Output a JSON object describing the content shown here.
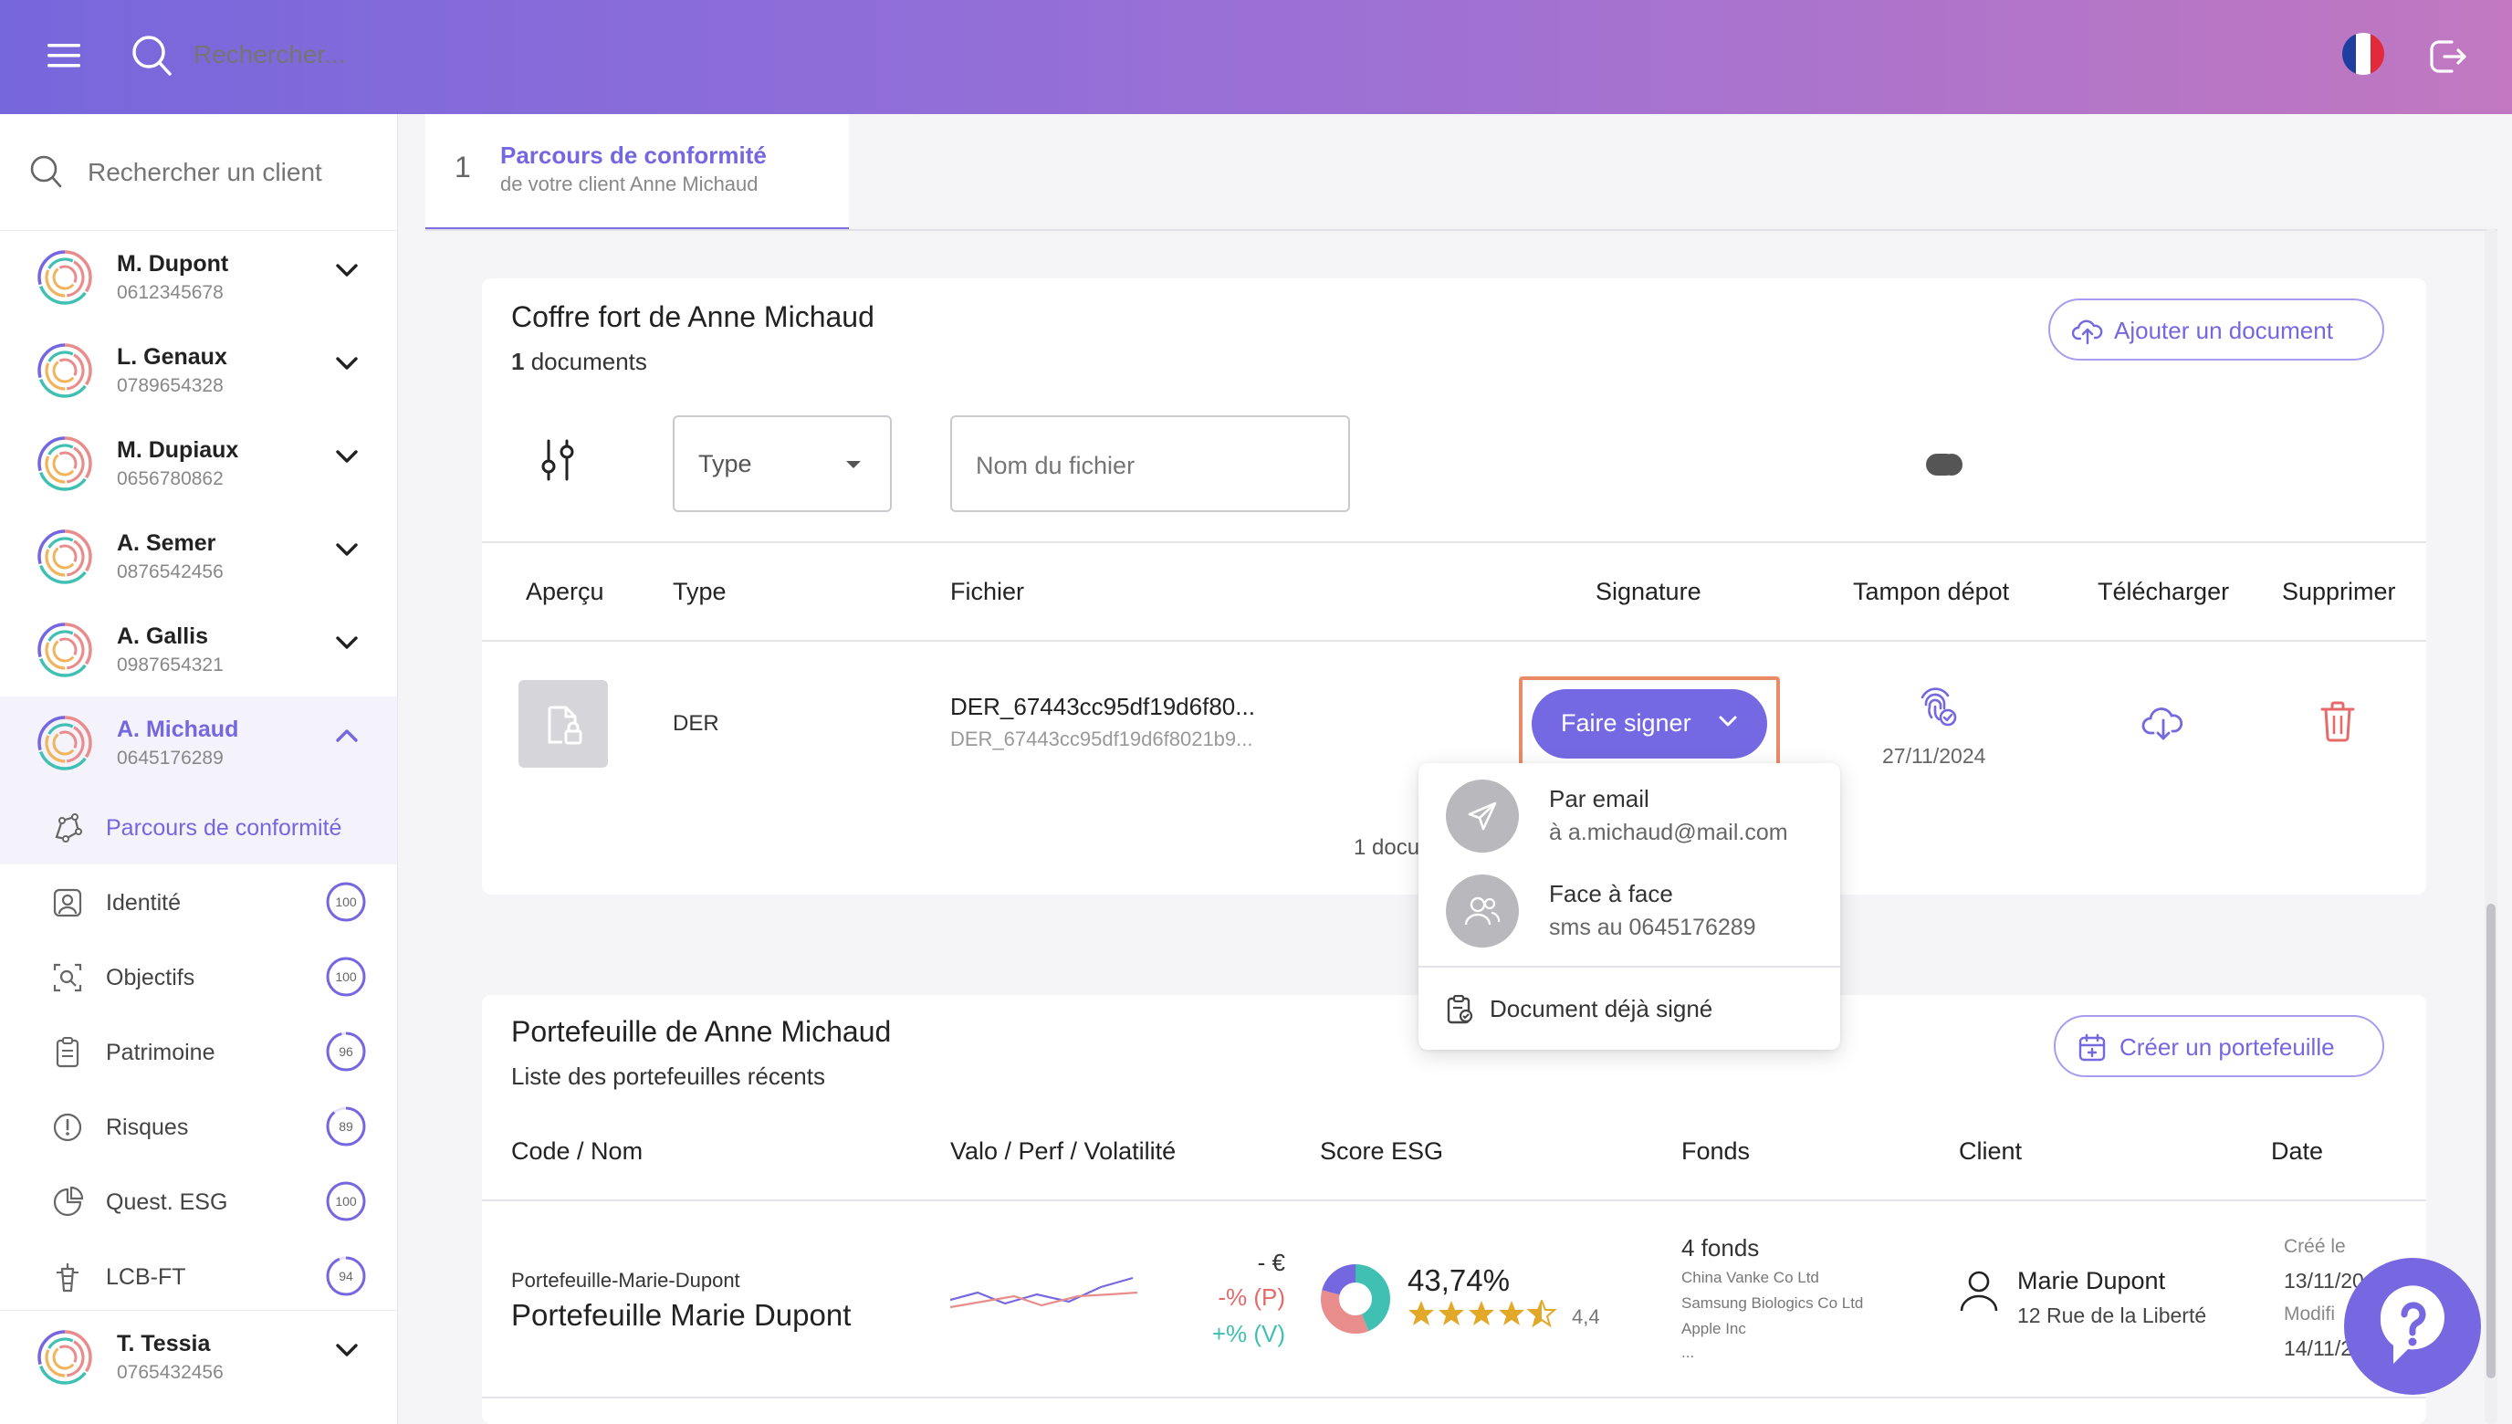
{
  "topbar": {
    "search_placeholder": "Rechercher..."
  },
  "sidebar": {
    "search_placeholder": "Rechercher un client",
    "clients": [
      {
        "name": "M. Dupont",
        "phone": "0612345678"
      },
      {
        "name": "L. Genaux",
        "phone": "0789654328"
      },
      {
        "name": "M. Dupiaux",
        "phone": "0656780862"
      },
      {
        "name": "A. Semer",
        "phone": "0876542456"
      },
      {
        "name": "A. Gallis",
        "phone": "0987654321"
      },
      {
        "name": "A. Michaud",
        "phone": "0645176289"
      }
    ],
    "sub_items": [
      {
        "label": "Parcours de conformité",
        "score": ""
      },
      {
        "label": "Identité",
        "score": "100"
      },
      {
        "label": "Objectifs",
        "score": "100"
      },
      {
        "label": "Patrimoine",
        "score": "96"
      },
      {
        "label": "Risques",
        "score": "89"
      },
      {
        "label": "Quest. ESG",
        "score": "100"
      },
      {
        "label": "LCB-FT",
        "score": "94"
      }
    ],
    "last_client": {
      "name": "T. Tessia",
      "phone": "0765432456"
    }
  },
  "stepper": {
    "number": "1",
    "title": "Parcours de conformité",
    "subtitle": "de votre client Anne Michaud"
  },
  "vault": {
    "title": "Coffre fort de Anne Michaud",
    "count_num": "1",
    "count_label": " documents",
    "add_button": "Ajouter un document",
    "type_select": "Type",
    "file_placeholder": "Nom du fichier",
    "headers": {
      "preview": "Aperçu",
      "type": "Type",
      "file": "Fichier",
      "signature": "Signature",
      "stamp": "Tampon dépot",
      "download": "Télécharger",
      "delete": "Supprimer"
    },
    "row": {
      "type": "DER",
      "file_name": "DER_67443cc95df19d6f80...",
      "file_sub": "DER_67443cc95df19d6f8021b9...",
      "sign_button": "Faire signer",
      "stamp_date": "27/11/2024"
    },
    "footer_partial": "1 docu"
  },
  "sign_menu": {
    "email_title": "Par email",
    "email_sub": "à a.michaud@mail.com",
    "face_title": "Face à face",
    "face_sub": "sms au 0645176289",
    "already_signed": "Document déjà signé"
  },
  "portfolio": {
    "title": "Portefeuille de Anne Michaud",
    "subtitle": "Liste des portefeuilles récents",
    "create_button": "Créer un portefeuille",
    "headers": {
      "code": "Code / Nom",
      "valo": "Valo / Perf / Volatilité",
      "esg": "Score ESG",
      "funds": "Fonds",
      "client": "Client",
      "date": "Date"
    },
    "row": {
      "code": "Portefeuille-Marie-Dupont",
      "name": "Portefeuille Marie Dupont",
      "valo": "- €",
      "perf": "-% (P)",
      "vol": "+% (V)",
      "esg_pct": "43,74%",
      "esg_rating": "4,4",
      "funds_count": "4 fonds",
      "funds": [
        "China Vanke Co Ltd",
        "Samsung Biologics Co Ltd",
        "Apple Inc",
        "..."
      ],
      "client_name": "Marie Dupont",
      "client_addr": "12 Rue de la Liberté",
      "created_label": "Créé le",
      "created_date": "13/11/20",
      "modified_label": "Modifi",
      "modified_date": "14/11/2"
    }
  },
  "colors": {
    "accent": "#7467e0",
    "danger": "#e66a6a",
    "teal": "#3fc0b3"
  }
}
